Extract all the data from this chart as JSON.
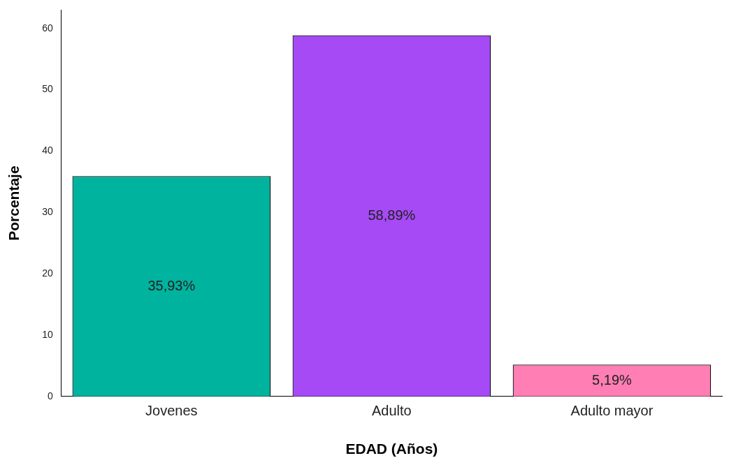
{
  "chart_data": {
    "type": "bar",
    "xlabel": "EDAD (Años)",
    "ylabel": "Porcentaje",
    "categories": [
      "Jovenes",
      "Adulto",
      "Adulto mayor"
    ],
    "values": [
      35.93,
      58.89,
      5.19
    ],
    "colors": [
      "#00b39f",
      "#a64af5",
      "#ff7eb3"
    ],
    "value_labels": [
      "35,93%",
      "58,89%",
      "5,19%"
    ],
    "ylim": [
      0,
      63
    ],
    "yticks": [
      0,
      10,
      20,
      30,
      40,
      50,
      60
    ],
    "grid": false,
    "legend": false
  }
}
